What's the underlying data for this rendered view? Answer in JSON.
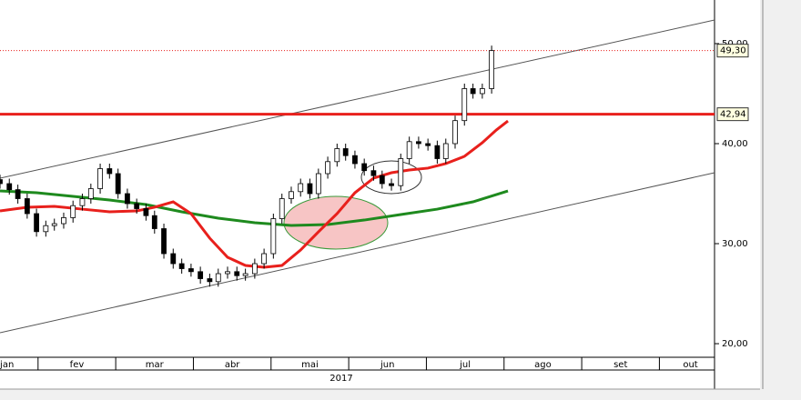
{
  "chart_data": {
    "type": "candlestick",
    "year_label": "2017",
    "xlim": [
      1.51,
      10.71
    ],
    "ylim": [
      18.64,
      54.36
    ],
    "xticks": [
      {
        "value": 1.6,
        "label": "jan"
      },
      {
        "value": 2.5,
        "label": "fev"
      },
      {
        "value": 3.5,
        "label": "mar"
      },
      {
        "value": 4.5,
        "label": "abr"
      },
      {
        "value": 5.5,
        "label": "mai"
      },
      {
        "value": 6.5,
        "label": "jun"
      },
      {
        "value": 7.5,
        "label": "jul"
      },
      {
        "value": 8.5,
        "label": "ago"
      },
      {
        "value": 9.5,
        "label": "set"
      },
      {
        "value": 10.4,
        "label": "out"
      }
    ],
    "yticks": [
      {
        "value": 20,
        "label": "20,00"
      },
      {
        "value": 30,
        "label": "30,00"
      },
      {
        "value": 40,
        "label": "40,00"
      },
      {
        "value": 50,
        "label": "50,00"
      }
    ],
    "candles": {
      "x": [
        1.51,
        1.63,
        1.74,
        1.86,
        1.98,
        2.1,
        2.21,
        2.33,
        2.45,
        2.57,
        2.68,
        2.8,
        2.92,
        3.03,
        3.15,
        3.27,
        3.39,
        3.5,
        3.62,
        3.74,
        3.85,
        3.97,
        4.09,
        4.21,
        4.32,
        4.44,
        4.56,
        4.67,
        4.79,
        4.91,
        5.03,
        5.14,
        5.26,
        5.38,
        5.5,
        5.61,
        5.73,
        5.85,
        5.96,
        6.08,
        6.2,
        6.32,
        6.43,
        6.55,
        6.67,
        6.78,
        6.9,
        7.02,
        7.14,
        7.25,
        7.37,
        7.49,
        7.6,
        7.72,
        7.84
      ],
      "close": [
        36.0,
        35.4,
        34.5,
        33.0,
        31.2,
        31.8,
        32.0,
        32.6,
        33.8,
        34.5,
        35.5,
        37.5,
        37.0,
        35.0,
        34.0,
        33.5,
        32.8,
        31.5,
        29.0,
        28.0,
        27.5,
        27.2,
        26.5,
        26.2,
        27.0,
        27.2,
        26.8,
        27.0,
        28.0,
        29.0,
        32.5,
        34.5,
        35.2,
        36.0,
        35.0,
        37.0,
        38.2,
        39.5,
        38.8,
        38.0,
        37.3,
        36.8,
        36.0,
        35.8,
        38.5,
        40.2,
        40.0,
        39.8,
        38.5,
        40.0,
        42.3,
        45.5,
        45.0,
        45.5,
        49.3
      ],
      "open": [
        36.4,
        36.0,
        35.4,
        34.5,
        33.0,
        31.2,
        31.8,
        32.0,
        32.6,
        33.8,
        34.5,
        35.5,
        37.5,
        37.0,
        35.0,
        34.0,
        33.5,
        32.8,
        31.5,
        29.0,
        28.0,
        27.5,
        27.2,
        26.5,
        26.2,
        27.0,
        27.2,
        26.8,
        27.0,
        28.0,
        29.0,
        32.5,
        34.5,
        35.2,
        36.0,
        35.0,
        37.0,
        38.2,
        39.5,
        38.8,
        38.0,
        37.3,
        36.8,
        36.0,
        35.8,
        38.5,
        40.2,
        40.0,
        39.8,
        38.5,
        40.0,
        42.3,
        45.5,
        45.0,
        45.5
      ],
      "high": [
        36.9,
        36.5,
        35.9,
        35.0,
        33.5,
        32.3,
        32.5,
        33.1,
        34.3,
        35.0,
        36.0,
        38.0,
        38.0,
        37.5,
        35.5,
        34.5,
        34.0,
        33.3,
        32.0,
        29.5,
        28.5,
        28.0,
        27.7,
        27.0,
        27.5,
        27.7,
        27.7,
        27.5,
        28.5,
        29.5,
        33.0,
        35.0,
        35.7,
        36.5,
        36.5,
        37.5,
        38.7,
        40.0,
        40.0,
        39.3,
        38.5,
        37.8,
        37.3,
        36.5,
        39.0,
        40.7,
        40.7,
        40.5,
        40.3,
        40.5,
        42.8,
        46.0,
        46.0,
        46.0,
        49.8
      ],
      "low": [
        35.5,
        34.9,
        34.0,
        32.5,
        30.7,
        30.7,
        31.3,
        31.5,
        32.1,
        33.3,
        34.0,
        35.0,
        36.5,
        34.5,
        33.5,
        33.0,
        32.3,
        31.0,
        28.5,
        27.5,
        27.0,
        26.7,
        26.0,
        25.7,
        25.7,
        26.5,
        26.3,
        26.3,
        26.5,
        27.5,
        28.5,
        32.0,
        34.0,
        34.7,
        34.5,
        34.5,
        36.5,
        37.7,
        38.3,
        37.5,
        36.8,
        36.3,
        35.5,
        35.3,
        35.3,
        38.0,
        39.5,
        39.3,
        38.0,
        38.0,
        39.5,
        41.8,
        44.5,
        44.5,
        45.0
      ]
    },
    "red_ma": {
      "color": "#e8201c",
      "x": [
        1.51,
        1.86,
        2.21,
        2.57,
        2.92,
        3.27,
        3.5,
        3.74,
        3.97,
        4.21,
        4.44,
        4.67,
        4.91,
        5.14,
        5.38,
        5.61,
        5.85,
        6.08,
        6.32,
        6.55,
        6.78,
        7.02,
        7.25,
        7.49,
        7.72,
        7.9,
        8.05
      ],
      "values": [
        33.27,
        33.64,
        33.73,
        33.45,
        33.18,
        33.27,
        33.64,
        34.18,
        33.0,
        30.55,
        28.64,
        27.82,
        27.64,
        27.82,
        29.36,
        31.18,
        33.0,
        35.09,
        36.55,
        37.09,
        37.36,
        37.55,
        38.0,
        38.73,
        40.09,
        41.36,
        42.27
      ]
    },
    "green_ma": {
      "color": "#1e8a1e",
      "x": [
        1.51,
        1.98,
        2.45,
        2.92,
        3.39,
        3.85,
        4.32,
        4.79,
        5.26,
        5.73,
        6.2,
        6.67,
        7.14,
        7.6,
        8.05
      ],
      "values": [
        35.27,
        35.09,
        34.73,
        34.36,
        33.91,
        33.18,
        32.55,
        32.09,
        31.82,
        31.91,
        32.36,
        32.91,
        33.45,
        34.18,
        35.27
      ]
    },
    "channel": [
      {
        "x": [
          1.51,
          10.71
        ],
        "values": [
          36.55,
          52.36
        ]
      },
      {
        "x": [
          1.51,
          10.71
        ],
        "values": [
          21.09,
          37.09
        ]
      }
    ],
    "levels": [
      {
        "value": 49.3,
        "label": "49,30",
        "style": "dotted"
      },
      {
        "value": 42.94,
        "label": "42,94",
        "style": "solid"
      }
    ]
  }
}
